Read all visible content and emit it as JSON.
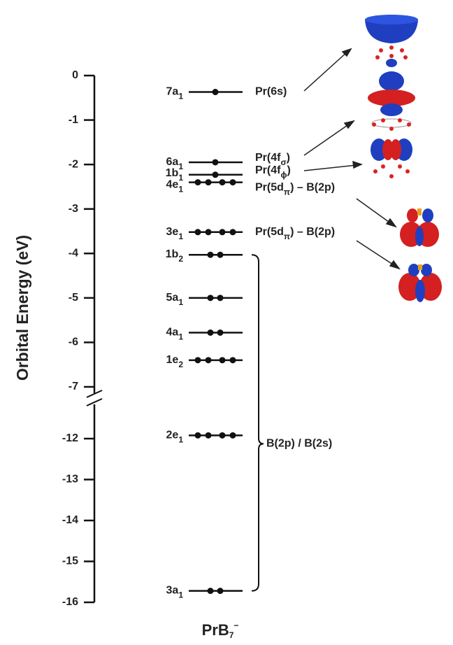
{
  "chart_data": {
    "type": "energy-levels",
    "y_label": "Orbital Energy (eV)",
    "ylim": [
      -16,
      0
    ],
    "y_break": [
      -7,
      -12
    ],
    "yticks": [
      0,
      -1,
      -2,
      -3,
      -4,
      -5,
      -6,
      -7,
      -12,
      -13,
      -14,
      -15,
      -16
    ],
    "names": [
      "7a",
      "6a",
      "1b",
      "4e",
      "3e",
      "1b",
      "5a",
      "4a",
      "1e",
      "2e",
      "3a"
    ],
    "subs": [
      "1",
      "1",
      "1",
      "1",
      "1",
      "2",
      "1",
      "1",
      "2",
      "1",
      "1"
    ],
    "energies": [
      -0.37,
      -1.95,
      -2.23,
      -2.4,
      -3.52,
      -4.03,
      -5.0,
      -5.78,
      -6.4,
      -11.92,
      -15.72
    ],
    "electrons": [
      1,
      1,
      1,
      4,
      4,
      2,
      2,
      2,
      4,
      4,
      2
    ],
    "annotations": [
      [
        {
          "t": "Pr(6s)"
        }
      ],
      [
        {
          "t": "Pr(4f"
        },
        {
          "sub": "σ"
        },
        {
          "t": ")"
        }
      ],
      [
        {
          "t": "Pr(4f"
        },
        {
          "sub": "ϕ"
        },
        {
          "t": ")"
        }
      ],
      [
        {
          "t": "Pr(5d"
        },
        {
          "sub": "π"
        },
        {
          "t": ") – B(2p)"
        }
      ],
      [
        {
          "t": "Pr(5d"
        },
        {
          "sub": "π"
        },
        {
          "t": ") – B(2p)"
        }
      ],
      null,
      null,
      null,
      null,
      null,
      null
    ],
    "brace_label": "B(2p) / B(2s)",
    "species": [
      {
        "t": "PrB"
      },
      {
        "sub": "7"
      },
      {
        "sup": "−"
      }
    ],
    "color": "#111111"
  }
}
